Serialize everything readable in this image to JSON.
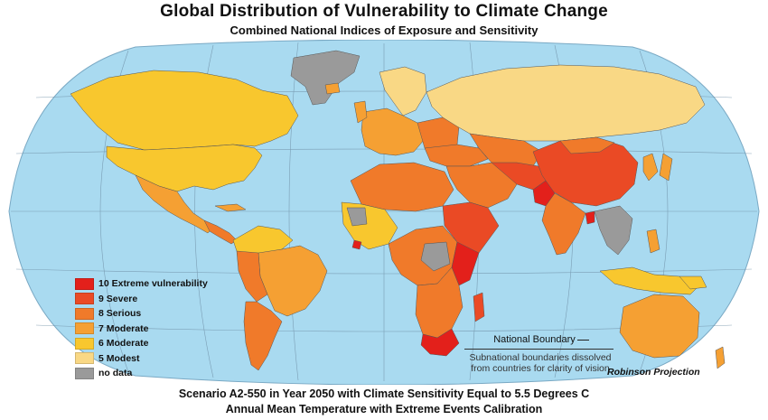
{
  "title": "Global Distribution of Vulnerability to Climate Change",
  "subtitle": "Combined National Indices of Exposure and Sensitivity",
  "legend": {
    "items": [
      {
        "label": "10 Extreme vulnerability",
        "color": "#e3201b"
      },
      {
        "label": "9  Severe",
        "color": "#ea4a25"
      },
      {
        "label": "8  Serious",
        "color": "#f07a2a"
      },
      {
        "label": "7  Moderate",
        "color": "#f5a033"
      },
      {
        "label": "6  Moderate",
        "color": "#f8c72e"
      },
      {
        "label": "5  Modest",
        "color": "#f9d885"
      },
      {
        "label": "no data",
        "color": "#9a9a9a"
      }
    ]
  },
  "boundary": {
    "label": "National Boundary",
    "note_line1": "Subnational boundaries dissolved",
    "note_line2": "from countries for clarity of vision"
  },
  "projection_label": "Robinson Projection",
  "caption_line1": "Scenario A2-550 in Year 2050 with Climate Sensitivity Equal to 5.5 Degrees C",
  "caption_line2": "Annual Mean Temperature with Extreme Events Calibration",
  "colors": {
    "ocean": "#a9daf0",
    "grid": "#6f8fa6"
  }
}
